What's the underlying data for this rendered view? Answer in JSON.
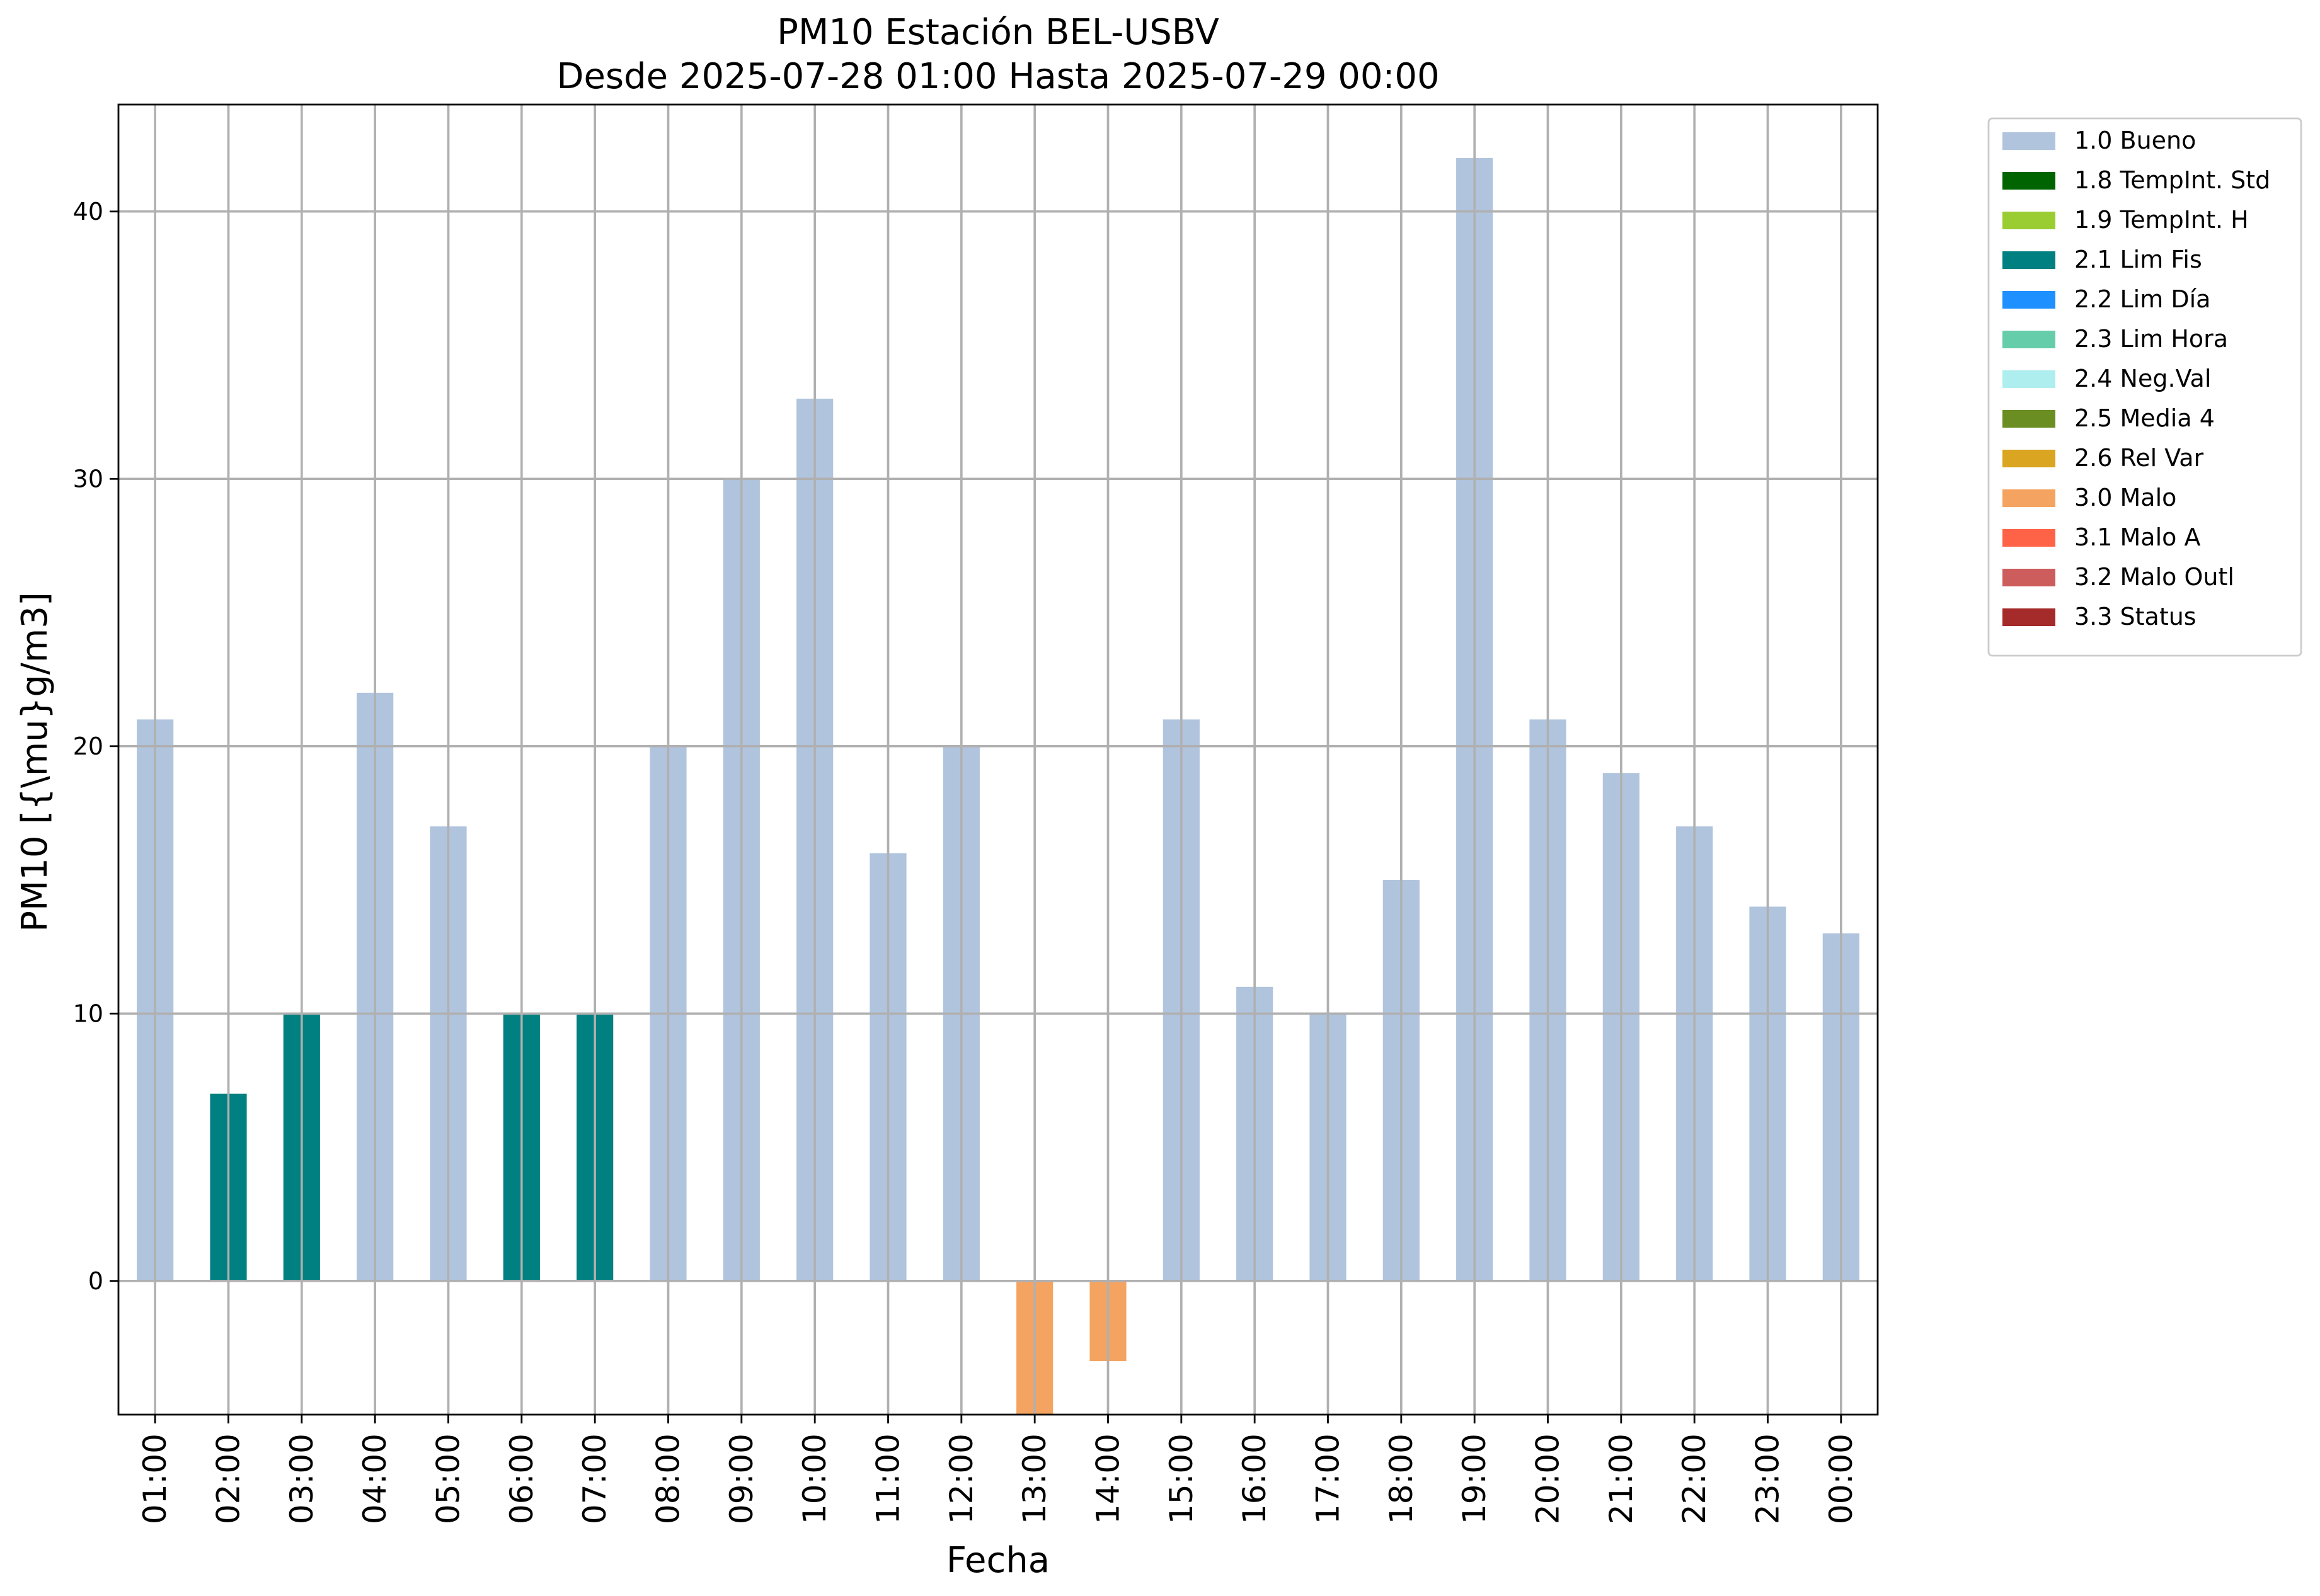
{
  "chart_data": {
    "type": "bar",
    "title": "PM10 Estación BEL-USBV",
    "subtitle": "Desde 2025-07-28 01:00 Hasta 2025-07-29 00:00",
    "xlabel": "Fecha",
    "ylabel": "PM10 [{\\mu}g/m3]",
    "ylim": [
      -5,
      44
    ],
    "yticks": [
      0,
      10,
      20,
      30,
      40
    ],
    "grid": true,
    "legend_position": "outside-top-right",
    "categories": [
      "01:00",
      "02:00",
      "03:00",
      "04:00",
      "05:00",
      "06:00",
      "07:00",
      "08:00",
      "09:00",
      "10:00",
      "11:00",
      "12:00",
      "13:00",
      "14:00",
      "15:00",
      "16:00",
      "17:00",
      "18:00",
      "19:00",
      "20:00",
      "21:00",
      "22:00",
      "23:00",
      "00:00"
    ],
    "values": [
      21,
      7,
      10,
      22,
      17,
      10,
      10,
      20,
      30,
      33,
      16,
      20,
      -5,
      -3,
      21,
      11,
      10,
      15,
      42,
      21,
      19,
      17,
      14,
      13
    ],
    "flags": [
      "1.0 Bueno",
      "2.1 Lim Fis",
      "2.1 Lim Fis",
      "1.0 Bueno",
      "1.0 Bueno",
      "2.1 Lim Fis",
      "2.1 Lim Fis",
      "1.0 Bueno",
      "1.0 Bueno",
      "1.0 Bueno",
      "1.0 Bueno",
      "1.0 Bueno",
      "3.0 Malo",
      "3.0 Malo",
      "1.0 Bueno",
      "1.0 Bueno",
      "1.0 Bueno",
      "1.0 Bueno",
      "1.0 Bueno",
      "1.0 Bueno",
      "1.0 Bueno",
      "1.0 Bueno",
      "1.0 Bueno",
      "1.0 Bueno"
    ],
    "legend": [
      {
        "label": "1.0 Bueno",
        "color": "#b0c4de"
      },
      {
        "label": "1.8 TempInt. Std",
        "color": "#006400"
      },
      {
        "label": "1.9 TempInt. H",
        "color": "#9acd32"
      },
      {
        "label": "2.1 Lim Fis",
        "color": "#008080"
      },
      {
        "label": "2.2 Lim Día",
        "color": "#1e90ff"
      },
      {
        "label": "2.3 Lim Hora",
        "color": "#66cdaa"
      },
      {
        "label": "2.4 Neg.Val",
        "color": "#afeeee"
      },
      {
        "label": "2.5 Media 4",
        "color": "#6b8e23"
      },
      {
        "label": "2.6 Rel Var",
        "color": "#daa520"
      },
      {
        "label": "3.0 Malo",
        "color": "#f4a460"
      },
      {
        "label": "3.1 Malo A",
        "color": "#ff6347"
      },
      {
        "label": "3.2 Malo Outl",
        "color": "#cd5c5c"
      },
      {
        "label": "3.3 Status",
        "color": "#a52a2a"
      }
    ]
  }
}
